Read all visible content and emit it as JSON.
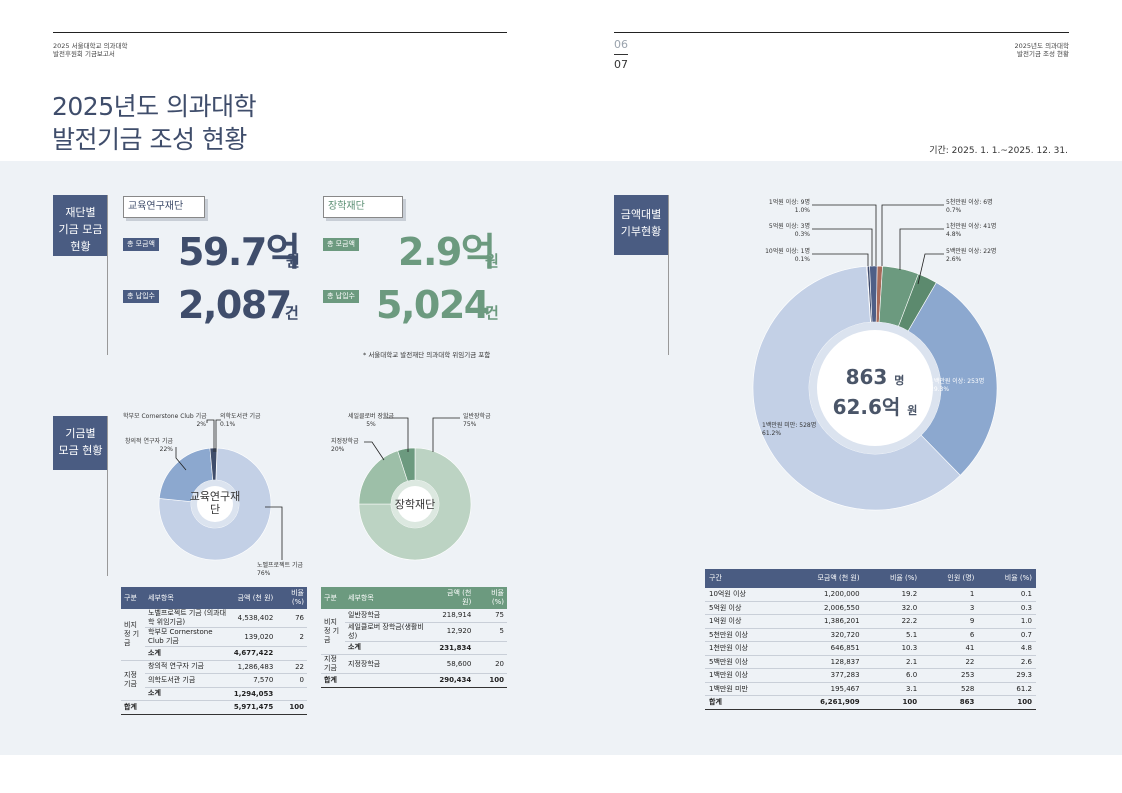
{
  "page": {
    "left_header": [
      "2025 서울대학교 의과대학",
      "발전후원회 기금보고서"
    ],
    "right_header": [
      "2025년도 의과대학",
      "발전기금 조성 현황"
    ],
    "page_left": "06",
    "page_right": "07",
    "title_line1": "2025년도 의과대학",
    "title_line2": "발전기금 조성 현황",
    "period": "기간: 2025. 1. 1.~2025. 12. 31."
  },
  "sections": {
    "foundation": [
      "재단별",
      "기금 모금",
      "현황"
    ],
    "fund": [
      "기금별",
      "모금 현황"
    ],
    "amount": [
      "금액대별",
      "기부현황"
    ]
  },
  "summary": {
    "edu": {
      "name": "교육연구재단",
      "total_label": "총 모금액",
      "total_value": "59.7억",
      "total_unit": "원",
      "count_label": "총 납입수",
      "count_value": "2,087",
      "count_unit": "건"
    },
    "schol": {
      "name": "장학재단",
      "total_label": "총 모금액",
      "total_value": "2.9억",
      "total_unit": "원",
      "count_label": "총 납입수",
      "count_value": "5,024",
      "count_unit": "건"
    },
    "note": "* 서울대학교 발전재단 의과대학 위임기금 포함"
  },
  "colors": {
    "navy": "#4a5c82",
    "green": "#6c9a7f",
    "edu_big": "#c3d0e6",
    "edu_mid": "#8ca8cf",
    "edu_dark": "#3f4d6b",
    "sch_big": "#bcd3c3",
    "sch_mid": "#9dbfa8",
    "sch_dark": "#6c9a7f"
  },
  "chart_data": [
    {
      "type": "pie",
      "title": "교육연구재단",
      "categories": [
        "노벨프로젝트 기금",
        "창의적 연구자 기금",
        "학부모 Cornerstone Club 기금",
        "의학도서관 기금"
      ],
      "values": [
        76,
        22,
        2,
        0.1
      ],
      "labels": [
        "노벨프로젝트 기금\n76%",
        "창의적 연구자 기금\n22%",
        "학부모 Cornerstone Club 기금\n2%",
        "의학도서관 기금\n0.1%"
      ]
    },
    {
      "type": "pie",
      "title": "장학재단",
      "categories": [
        "일반장학금",
        "세일클로버 장학금",
        "지정장학금"
      ],
      "values": [
        75,
        5,
        20
      ],
      "labels": [
        "일반장학금\n75%",
        "세일클로버 장학금\n5%",
        "지정장학금\n20%"
      ]
    },
    {
      "type": "pie",
      "center_count": "863",
      "center_count_unit": "명",
      "center_amount": "62.6억",
      "center_amount_unit": "원",
      "categories": [
        "10억원 이상",
        "5억원 이상",
        "1억원 이상",
        "5천만원 이상",
        "1천만원 이상",
        "5백만원 이상",
        "1백만원 이상",
        "1백만원 미만"
      ],
      "values": [
        0.1,
        0.3,
        1.0,
        0.7,
        4.8,
        2.6,
        29.3,
        61.2
      ],
      "counts": [
        1,
        3,
        9,
        6,
        41,
        22,
        253,
        528
      ],
      "labels": [
        "10억원 이상: 1명\n0.1%",
        "5억원 이상: 3명\n0.3%",
        "1억원 이상: 9명\n1.0%",
        "5천만원 이상: 6명\n0.7%",
        "1천만원 이상: 41명\n4.8%",
        "5백만원 이상: 22명\n2.6%",
        "1백만원 이상: 253명\n29.3%",
        "1백만원 미만: 528명\n61.2%"
      ]
    },
    {
      "type": "table",
      "title": "교육연구재단",
      "headers": [
        "구분",
        "세부항목",
        "금액\n(천 원)",
        "비율\n(%)"
      ],
      "rows": [
        {
          "group": "비지정\n기금",
          "item": "노벨프로젝트 기금\n(의과대학 위임기금)",
          "amount": "4,538,402",
          "ratio": "76",
          "kind": "row",
          "span": 3
        },
        {
          "group": "",
          "item": "학부모 Cornerstone Club 기금",
          "amount": "139,020",
          "ratio": "2",
          "kind": "row"
        },
        {
          "group": "",
          "item": "소계",
          "amount": "4,677,422",
          "ratio": "",
          "kind": "sub"
        },
        {
          "group": "지정\n기금",
          "item": "창의적 연구자 기금",
          "amount": "1,286,483",
          "ratio": "22",
          "kind": "row",
          "span": 3
        },
        {
          "group": "",
          "item": "의학도서관 기금",
          "amount": "7,570",
          "ratio": "0",
          "kind": "row"
        },
        {
          "group": "",
          "item": "소계",
          "amount": "1,294,053",
          "ratio": "",
          "kind": "sub"
        },
        {
          "group": "합계",
          "item": "",
          "amount": "5,971,475",
          "ratio": "100",
          "kind": "tot"
        }
      ]
    },
    {
      "type": "table",
      "title": "장학재단",
      "headers": [
        "구분",
        "세부항목",
        "금액\n(천 원)",
        "비율\n(%)"
      ],
      "rows": [
        {
          "group": "비지정\n기금",
          "item": "일반장학금",
          "amount": "218,914",
          "ratio": "75",
          "kind": "row",
          "span": 3
        },
        {
          "group": "",
          "item": "세일클로버 장학금(생활비성)",
          "amount": "12,920",
          "ratio": "5",
          "kind": "row"
        },
        {
          "group": "",
          "item": "소계",
          "amount": "231,834",
          "ratio": "",
          "kind": "sub"
        },
        {
          "group": "지정\n기금",
          "item": "지정장학금",
          "amount": "58,600",
          "ratio": "20",
          "kind": "row",
          "span": 1
        },
        {
          "group": "합계",
          "item": "",
          "amount": "290,434",
          "ratio": "100",
          "kind": "tot"
        }
      ]
    },
    {
      "type": "table",
      "headers": [
        "구간",
        "모금액\n(천 원)",
        "비율\n(%)",
        "인원\n(명)",
        "비율\n(%)"
      ],
      "rows": [
        [
          "10억원 이상",
          "1,200,000",
          "19.2",
          "1",
          "0.1"
        ],
        [
          "5억원 이상",
          "2,006,550",
          "32.0",
          "3",
          "0.3"
        ],
        [
          "1억원 이상",
          "1,386,201",
          "22.2",
          "9",
          "1.0"
        ],
        [
          "5천만원 이상",
          "320,720",
          "5.1",
          "6",
          "0.7"
        ],
        [
          "1천만원 이상",
          "646,851",
          "10.3",
          "41",
          "4.8"
        ],
        [
          "5백만원 이상",
          "128,837",
          "2.1",
          "22",
          "2.6"
        ],
        [
          "1백만원 이상",
          "377,283",
          "6.0",
          "253",
          "29.3"
        ],
        [
          "1백만원 미만",
          "195,467",
          "3.1",
          "528",
          "61.2"
        ]
      ],
      "total": [
        "합계",
        "6,261,909",
        "100",
        "863",
        "100"
      ]
    }
  ]
}
